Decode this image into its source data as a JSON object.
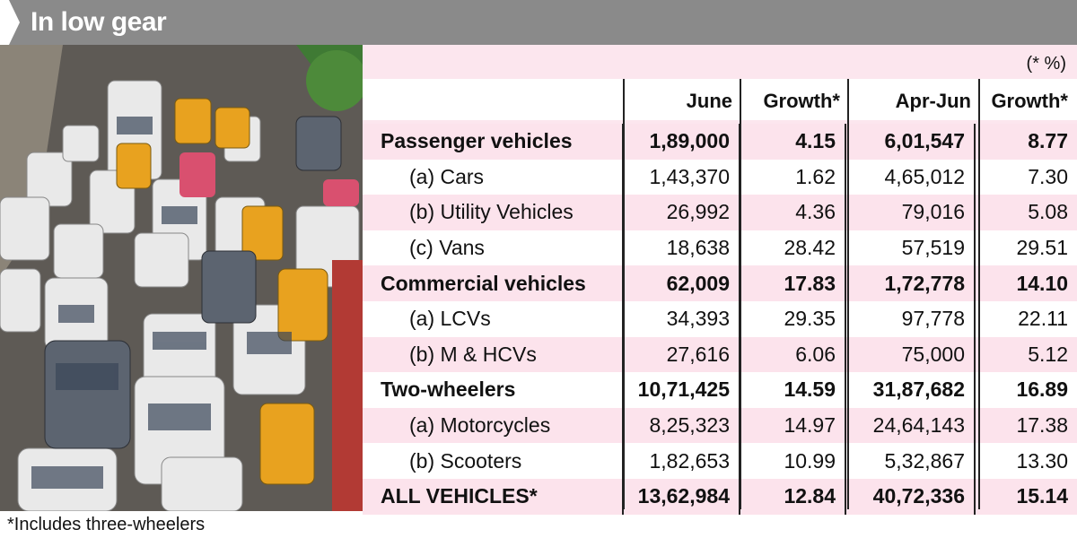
{
  "header": {
    "title": "In low gear"
  },
  "units_note": "(* %)",
  "columns": [
    "June",
    "Growth*",
    "Apr-Jun",
    "Growth*"
  ],
  "rows": [
    {
      "label": "Passenger vehicles",
      "june": "1,89,000",
      "g1": "4.15",
      "apr": "6,01,547",
      "g2": "8.77",
      "bold": true,
      "indent": false
    },
    {
      "label": "(a) Cars",
      "june": "1,43,370",
      "g1": "1.62",
      "apr": "4,65,012",
      "g2": "7.30",
      "bold": false,
      "indent": true
    },
    {
      "label": "(b) Utility Vehicles",
      "june": "26,992",
      "g1": "4.36",
      "apr": "79,016",
      "g2": "5.08",
      "bold": false,
      "indent": true
    },
    {
      "label": "(c) Vans",
      "june": "18,638",
      "g1": "28.42",
      "apr": "57,519",
      "g2": "29.51",
      "bold": false,
      "indent": true
    },
    {
      "label": "Commercial vehicles",
      "june": "62,009",
      "g1": "17.83",
      "apr": "1,72,778",
      "g2": "14.10",
      "bold": true,
      "indent": false
    },
    {
      "label": "(a) LCVs",
      "june": "34,393",
      "g1": "29.35",
      "apr": "97,778",
      "g2": "22.11",
      "bold": false,
      "indent": true
    },
    {
      "label": "(b) M & HCVs",
      "june": "27,616",
      "g1": "6.06",
      "apr": "75,000",
      "g2": "5.12",
      "bold": false,
      "indent": true
    },
    {
      "label": "Two-wheelers",
      "june": "10,71,425",
      "g1": "14.59",
      "apr": "31,87,682",
      "g2": "16.89",
      "bold": true,
      "indent": false
    },
    {
      "label": "(a) Motorcycles",
      "june": "8,25,323",
      "g1": "14.97",
      "apr": "24,64,143",
      "g2": "17.38",
      "bold": false,
      "indent": true
    },
    {
      "label": "(b) Scooters",
      "june": "1,82,653",
      "g1": "10.99",
      "apr": "5,32,867",
      "g2": "13.30",
      "bold": false,
      "indent": true
    },
    {
      "label": "ALL VEHICLES*",
      "june": "13,62,984",
      "g1": "12.84",
      "apr": "40,72,336",
      "g2": "15.14",
      "bold": true,
      "indent": false
    }
  ],
  "footnote": "*Includes three-wheelers",
  "colors": {
    "header_bar": "#8a8a8a",
    "row_pink": "#fce3ec",
    "row_white": "#ffffff"
  }
}
